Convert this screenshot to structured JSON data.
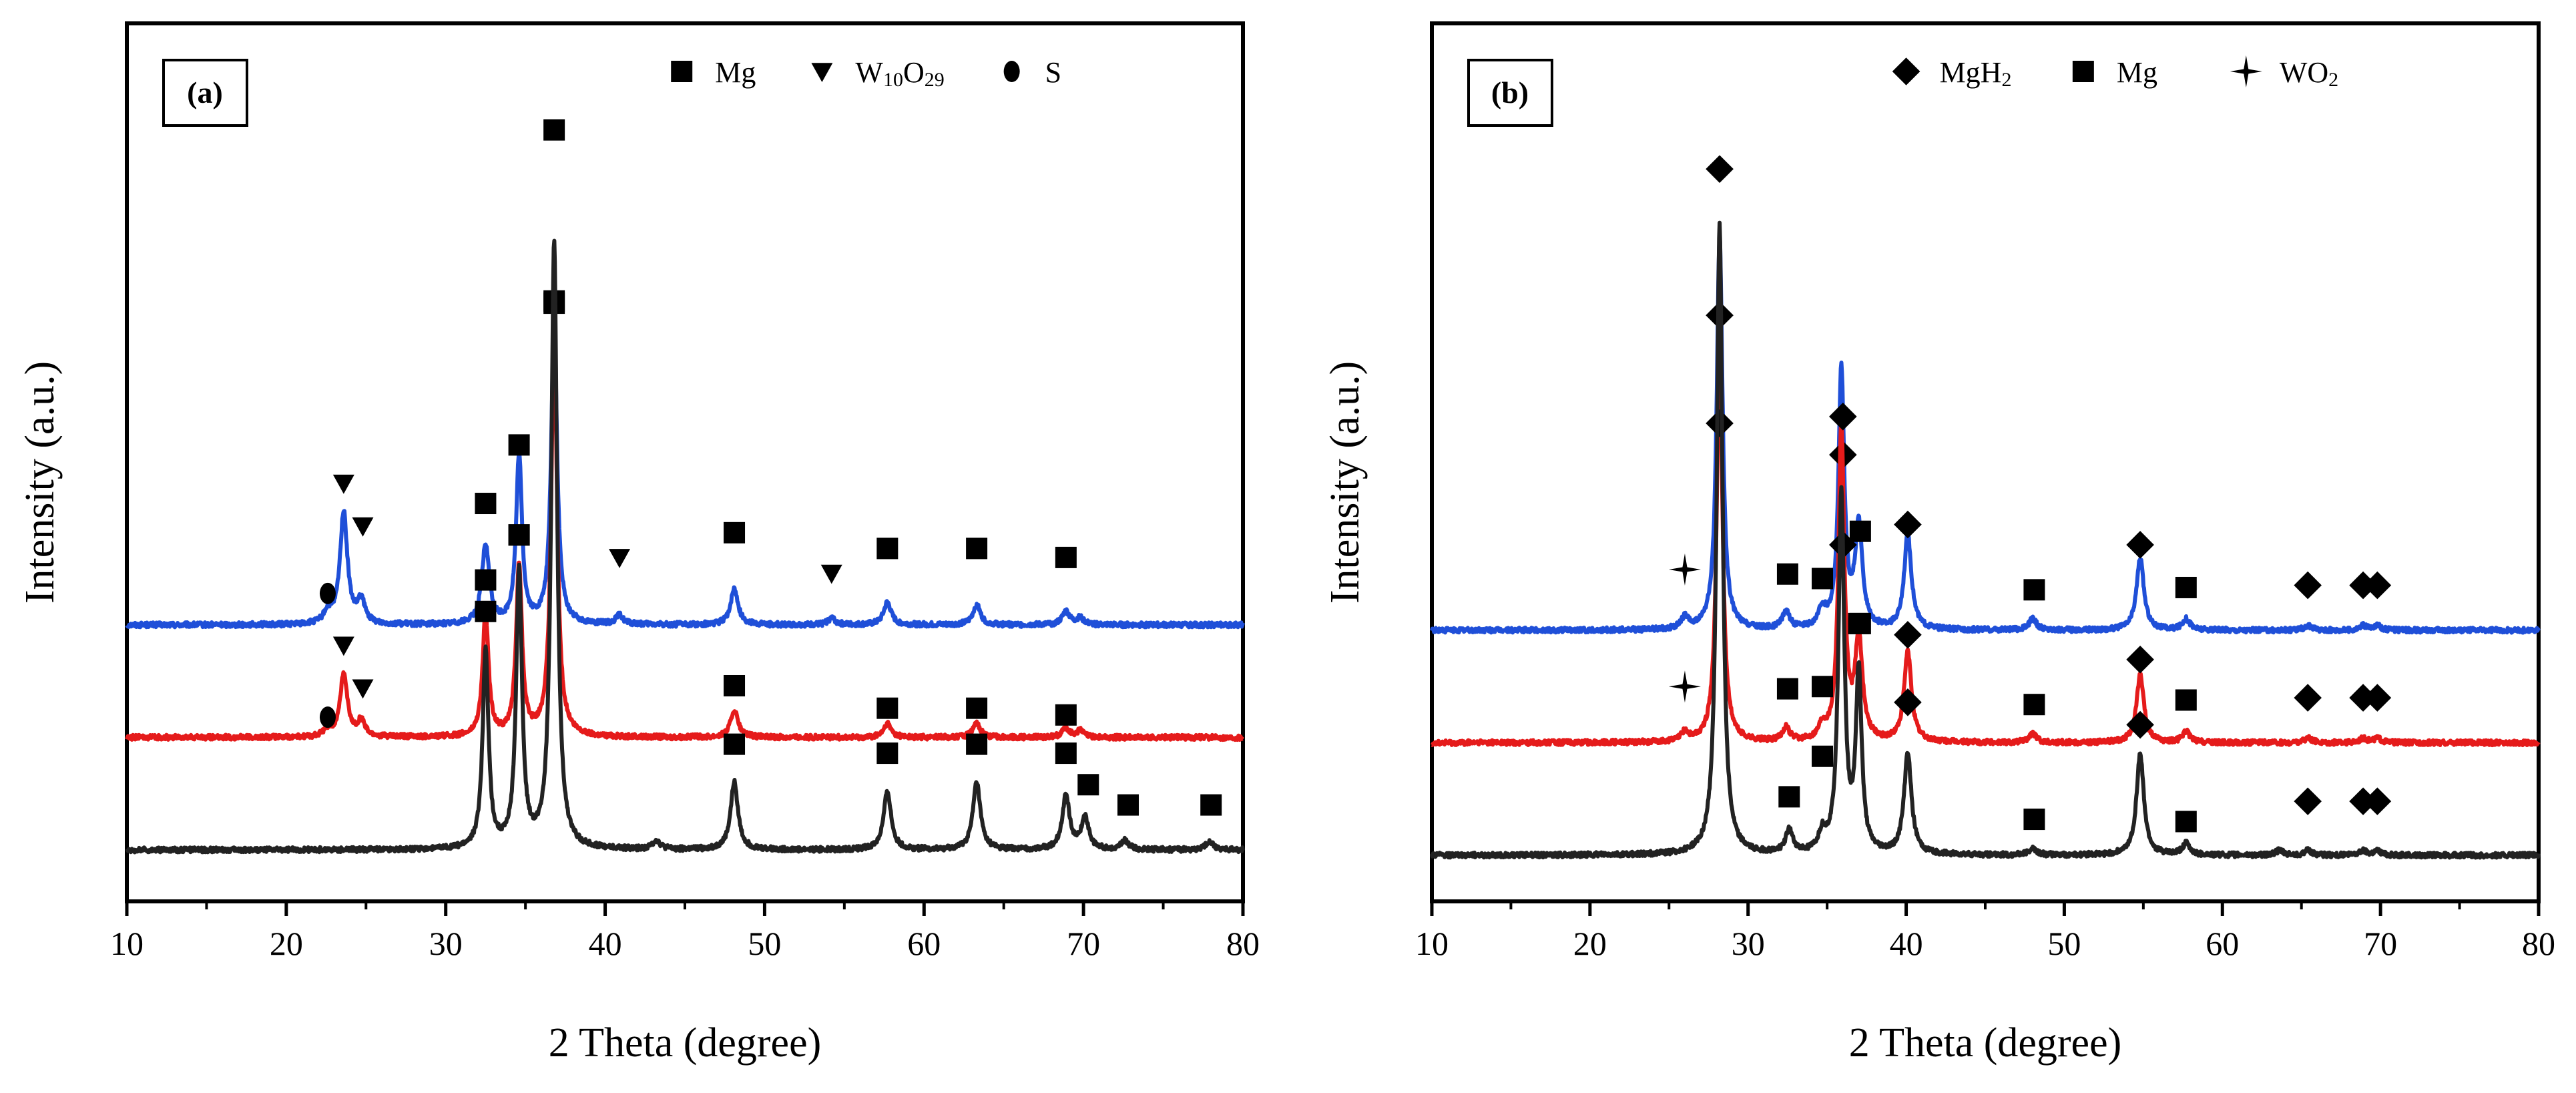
{
  "chart_data": [
    {
      "type": "line",
      "panel_label": "(a)",
      "xlabel": "2 Theta (degree)",
      "ylabel": "Intensity (a.u.)",
      "xlim": [
        10,
        80
      ],
      "xticks": [
        "10",
        "20",
        "30",
        "40",
        "50",
        "60",
        "70",
        "80"
      ],
      "yticks": "none",
      "legend": [
        {
          "symbol": "square",
          "label": "Mg"
        },
        {
          "symbol": "triangle-down",
          "label": "W",
          "sub1": "10",
          "mid": "O",
          "sub2": "29"
        },
        {
          "symbol": "circle",
          "label": "S"
        }
      ],
      "series": [
        {
          "name": "blue",
          "color": "#1f4fd8",
          "baseline": 1.0,
          "peaks": [
            [
              22.6,
              0.05
            ],
            [
              23.6,
              0.5
            ],
            [
              24.7,
              0.1
            ],
            [
              32.5,
              0.35
            ],
            [
              34.6,
              0.75
            ],
            [
              36.8,
              1.35
            ],
            [
              40.9,
              0.04
            ],
            [
              48.1,
              0.16
            ],
            [
              54.2,
              0.03
            ],
            [
              57.7,
              0.1
            ],
            [
              63.3,
              0.09
            ],
            [
              68.9,
              0.06
            ],
            [
              69.8,
              0.03
            ]
          ],
          "markers": [
            {
              "symbol": "circle",
              "x": 22.6,
              "y": 1.14
            },
            {
              "symbol": "triangle-down",
              "x": 23.6,
              "y": 1.63
            },
            {
              "symbol": "triangle-down",
              "x": 24.8,
              "y": 1.44
            },
            {
              "symbol": "square",
              "x": 32.5,
              "y": 1.54
            },
            {
              "symbol": "square",
              "x": 34.6,
              "y": 1.8
            },
            {
              "symbol": "square",
              "x": 36.8,
              "y": 2.43
            },
            {
              "symbol": "triangle-down",
              "x": 40.9,
              "y": 1.3
            },
            {
              "symbol": "square",
              "x": 48.1,
              "y": 1.41
            },
            {
              "symbol": "triangle-down",
              "x": 54.2,
              "y": 1.23
            },
            {
              "symbol": "square",
              "x": 57.7,
              "y": 1.34
            },
            {
              "symbol": "square",
              "x": 63.3,
              "y": 1.34
            },
            {
              "symbol": "square",
              "x": 68.9,
              "y": 1.3
            }
          ]
        },
        {
          "name": "red",
          "color": "#e51b1b",
          "baseline": 0.5,
          "peaks": [
            [
              22.6,
              0.03
            ],
            [
              23.6,
              0.28
            ],
            [
              24.7,
              0.07
            ],
            [
              32.5,
              0.55
            ],
            [
              34.6,
              0.76
            ],
            [
              36.8,
              1.8
            ],
            [
              48.1,
              0.12
            ],
            [
              57.7,
              0.06
            ],
            [
              63.3,
              0.06
            ],
            [
              68.9,
              0.04
            ],
            [
              69.8,
              0.03
            ]
          ],
          "markers": [
            {
              "symbol": "circle",
              "x": 22.6,
              "y": 0.59
            },
            {
              "symbol": "triangle-down",
              "x": 23.6,
              "y": 0.91
            },
            {
              "symbol": "triangle-down",
              "x": 24.8,
              "y": 0.72
            },
            {
              "symbol": "square",
              "x": 32.5,
              "y": 1.2
            },
            {
              "symbol": "square",
              "x": 34.6,
              "y": 1.4
            },
            {
              "symbol": "square",
              "x": 36.8,
              "y": 2.44
            },
            {
              "symbol": "square",
              "x": 48.1,
              "y": 0.73
            },
            {
              "symbol": "square",
              "x": 57.7,
              "y": 0.63
            },
            {
              "symbol": "square",
              "x": 63.3,
              "y": 0.63
            },
            {
              "symbol": "square",
              "x": 68.9,
              "y": 0.6
            }
          ]
        },
        {
          "name": "black",
          "color": "#222222",
          "baseline": 0.0,
          "peaks": [
            [
              32.5,
              0.88
            ],
            [
              34.6,
              1.23
            ],
            [
              36.8,
              2.7
            ],
            [
              43.2,
              0.04
            ],
            [
              48.1,
              0.3
            ],
            [
              57.7,
              0.26
            ],
            [
              63.3,
              0.3
            ],
            [
              68.9,
              0.24
            ],
            [
              70.1,
              0.14
            ],
            [
              72.6,
              0.04
            ],
            [
              77.9,
              0.04
            ]
          ],
          "markers": [
            {
              "symbol": "square",
              "x": 32.5,
              "y": 1.06
            },
            {
              "symbol": "square",
              "x": 34.6,
              "y": 1.4
            },
            {
              "symbol": "square",
              "x": 36.8,
              "y": 3.2
            },
            {
              "symbol": "square",
              "x": 48.1,
              "y": 0.47
            },
            {
              "symbol": "square",
              "x": 57.7,
              "y": 0.43
            },
            {
              "symbol": "square",
              "x": 63.3,
              "y": 0.47
            },
            {
              "symbol": "square",
              "x": 68.9,
              "y": 0.43
            },
            {
              "symbol": "square",
              "x": 70.3,
              "y": 0.29
            },
            {
              "symbol": "square",
              "x": 72.8,
              "y": 0.2
            },
            {
              "symbol": "square",
              "x": 78.0,
              "y": 0.2
            }
          ]
        }
      ]
    },
    {
      "type": "line",
      "panel_label": "(b)",
      "xlabel": "2 Theta (degree)",
      "ylabel": "Intensity (a.u.)",
      "xlim": [
        10,
        80
      ],
      "xticks": [
        "10",
        "20",
        "30",
        "40",
        "50",
        "60",
        "70",
        "80"
      ],
      "yticks": "none",
      "legend": [
        {
          "symbol": "diamond",
          "label": "MgH",
          "sub1": "2"
        },
        {
          "symbol": "square",
          "label": "Mg"
        },
        {
          "symbol": "star4",
          "label": "WO",
          "sub1": "2"
        }
      ],
      "series": [
        {
          "name": "blue",
          "color": "#1f4fd8",
          "baseline": 1.0,
          "peaks": [
            [
              26.0,
              0.05
            ],
            [
              28.2,
              1.75
            ],
            [
              32.4,
              0.08
            ],
            [
              34.7,
              0.08
            ],
            [
              35.9,
              1.15
            ],
            [
              37.0,
              0.45
            ],
            [
              40.1,
              0.42
            ],
            [
              48.0,
              0.05
            ],
            [
              54.8,
              0.32
            ],
            [
              57.7,
              0.05
            ],
            [
              65.4,
              0.02
            ],
            [
              68.9,
              0.02
            ],
            [
              69.8,
              0.02
            ]
          ],
          "markers": [
            {
              "symbol": "star4",
              "x": 26.0,
              "y": 1.27
            },
            {
              "symbol": "diamond",
              "x": 28.2,
              "y": 2.4
            },
            {
              "symbol": "square",
              "x": 32.5,
              "y": 1.25
            },
            {
              "symbol": "square",
              "x": 34.7,
              "y": 1.23
            },
            {
              "symbol": "diamond",
              "x": 36.0,
              "y": 1.78
            },
            {
              "symbol": "square",
              "x": 37.1,
              "y": 1.44
            },
            {
              "symbol": "diamond",
              "x": 40.1,
              "y": 1.47
            },
            {
              "symbol": "square",
              "x": 48.1,
              "y": 1.18
            },
            {
              "symbol": "diamond",
              "x": 54.8,
              "y": 1.38
            },
            {
              "symbol": "square",
              "x": 57.7,
              "y": 1.19
            },
            {
              "symbol": "diamond",
              "x": 65.4,
              "y": 1.2
            },
            {
              "symbol": "diamond",
              "x": 68.9,
              "y": 1.2
            },
            {
              "symbol": "diamond",
              "x": 69.8,
              "y": 1.2
            }
          ]
        },
        {
          "name": "red",
          "color": "#e51b1b",
          "baseline": 0.5,
          "peaks": [
            [
              26.0,
              0.04
            ],
            [
              28.2,
              1.75
            ],
            [
              32.4,
              0.06
            ],
            [
              34.7,
              0.06
            ],
            [
              35.9,
              1.4
            ],
            [
              37.0,
              0.45
            ],
            [
              40.1,
              0.4
            ],
            [
              48.0,
              0.04
            ],
            [
              54.8,
              0.3
            ],
            [
              57.7,
              0.05
            ],
            [
              65.4,
              0.02
            ],
            [
              68.9,
              0.02
            ],
            [
              69.8,
              0.02
            ]
          ],
          "markers": [
            {
              "symbol": "star4",
              "x": 26.0,
              "y": 0.75
            },
            {
              "symbol": "diamond",
              "x": 28.2,
              "y": 1.92
            },
            {
              "symbol": "square",
              "x": 32.5,
              "y": 0.74
            },
            {
              "symbol": "square",
              "x": 34.7,
              "y": 0.75
            },
            {
              "symbol": "diamond",
              "x": 36.0,
              "y": 1.38
            },
            {
              "symbol": "square",
              "x": 37.1,
              "y": 1.03
            },
            {
              "symbol": "diamond",
              "x": 40.1,
              "y": 0.98
            },
            {
              "symbol": "square",
              "x": 48.1,
              "y": 0.67
            },
            {
              "symbol": "diamond",
              "x": 54.8,
              "y": 0.87
            },
            {
              "symbol": "square",
              "x": 57.7,
              "y": 0.69
            },
            {
              "symbol": "diamond",
              "x": 65.4,
              "y": 0.7
            },
            {
              "symbol": "diamond",
              "x": 68.9,
              "y": 0.7
            },
            {
              "symbol": "diamond",
              "x": 69.8,
              "y": 0.7
            }
          ]
        },
        {
          "name": "black",
          "color": "#222222",
          "baseline": 0.0,
          "peaks": [
            [
              28.2,
              2.8
            ],
            [
              32.6,
              0.1
            ],
            [
              34.7,
              0.08
            ],
            [
              35.9,
              1.6
            ],
            [
              37.0,
              0.8
            ],
            [
              40.1,
              0.45
            ],
            [
              48.0,
              0.03
            ],
            [
              54.8,
              0.45
            ],
            [
              57.7,
              0.05
            ],
            [
              63.6,
              0.02
            ],
            [
              65.4,
              0.02
            ],
            [
              68.9,
              0.02
            ],
            [
              69.8,
              0.02
            ]
          ],
          "markers": [
            {
              "symbol": "diamond",
              "x": 28.2,
              "y": 3.05
            },
            {
              "symbol": "square",
              "x": 32.6,
              "y": 0.26
            },
            {
              "symbol": "square",
              "x": 34.7,
              "y": 0.44
            },
            {
              "symbol": "diamond",
              "x": 36.0,
              "y": 1.95
            },
            {
              "symbol": "square",
              "x": 37.0,
              "y": 1.03
            },
            {
              "symbol": "diamond",
              "x": 40.1,
              "y": 0.68
            },
            {
              "symbol": "square",
              "x": 48.1,
              "y": 0.16
            },
            {
              "symbol": "diamond",
              "x": 54.8,
              "y": 0.58
            },
            {
              "symbol": "square",
              "x": 57.7,
              "y": 0.15
            },
            {
              "symbol": "diamond",
              "x": 65.4,
              "y": 0.24
            },
            {
              "symbol": "diamond",
              "x": 68.9,
              "y": 0.24
            },
            {
              "symbol": "diamond",
              "x": 69.8,
              "y": 0.24
            }
          ]
        }
      ]
    }
  ]
}
